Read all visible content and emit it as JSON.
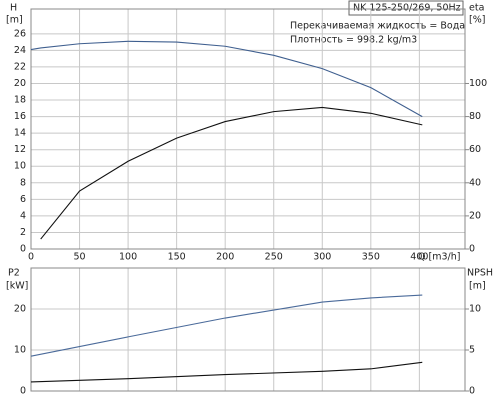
{
  "chart_data": [
    {
      "type": "line",
      "title": "NK 125-250/269, 50Hz",
      "annotations": [
        "Перекачиваемая жидкость = Вода",
        "Плотность = 998.2 kg/m3"
      ],
      "ylabel": "H",
      "ylabel_unit": "[m]",
      "y2label": "eta",
      "y2label_unit": "[%]",
      "xlabel": "Q [m3/h]",
      "x": [
        0,
        10,
        50,
        100,
        150,
        200,
        250,
        300,
        350,
        403
      ],
      "xlim": [
        0,
        447
      ],
      "xticks": [
        0,
        50,
        100,
        150,
        200,
        250,
        300,
        350,
        400
      ],
      "ylim": [
        0,
        29
      ],
      "yticks": [
        0,
        2,
        4,
        6,
        8,
        10,
        12,
        14,
        16,
        18,
        20,
        22,
        24,
        26
      ],
      "y2lim": [
        0,
        145
      ],
      "y2ticks": [
        0,
        20,
        40,
        60,
        80,
        100
      ],
      "grid": true,
      "series": [
        {
          "name": "H",
          "color": "#3f5f8f",
          "values": [
            24.1,
            24.3,
            24.8,
            25.1,
            25.0,
            24.5,
            23.4,
            21.8,
            19.5,
            16.0
          ]
        },
        {
          "name": "eta",
          "color": "#111111",
          "axis": "y2",
          "values": [
            null,
            6,
            35,
            53,
            67,
            77,
            83,
            85.5,
            82,
            75
          ]
        }
      ]
    },
    {
      "type": "line",
      "ylabel": "P2",
      "ylabel_unit": "[kW]",
      "y2label": "NPSH",
      "y2label_unit": "[m]",
      "x": [
        0,
        100,
        200,
        300,
        350,
        403
      ],
      "xlim": [
        0,
        447
      ],
      "ylim": [
        0,
        30
      ],
      "yticks": [
        0,
        10,
        20
      ],
      "y2lim": [
        0,
        15
      ],
      "y2ticks": [
        0,
        5,
        10
      ],
      "grid": true,
      "series": [
        {
          "name": "P2",
          "color": "#4a6a9a",
          "values": [
            8.5,
            13.2,
            17.8,
            21.7,
            22.7,
            23.4
          ]
        },
        {
          "name": "NPSH",
          "color": "#111111",
          "axis": "y2",
          "values": [
            1.1,
            1.5,
            2.0,
            2.4,
            2.7,
            3.5
          ]
        }
      ]
    }
  ]
}
